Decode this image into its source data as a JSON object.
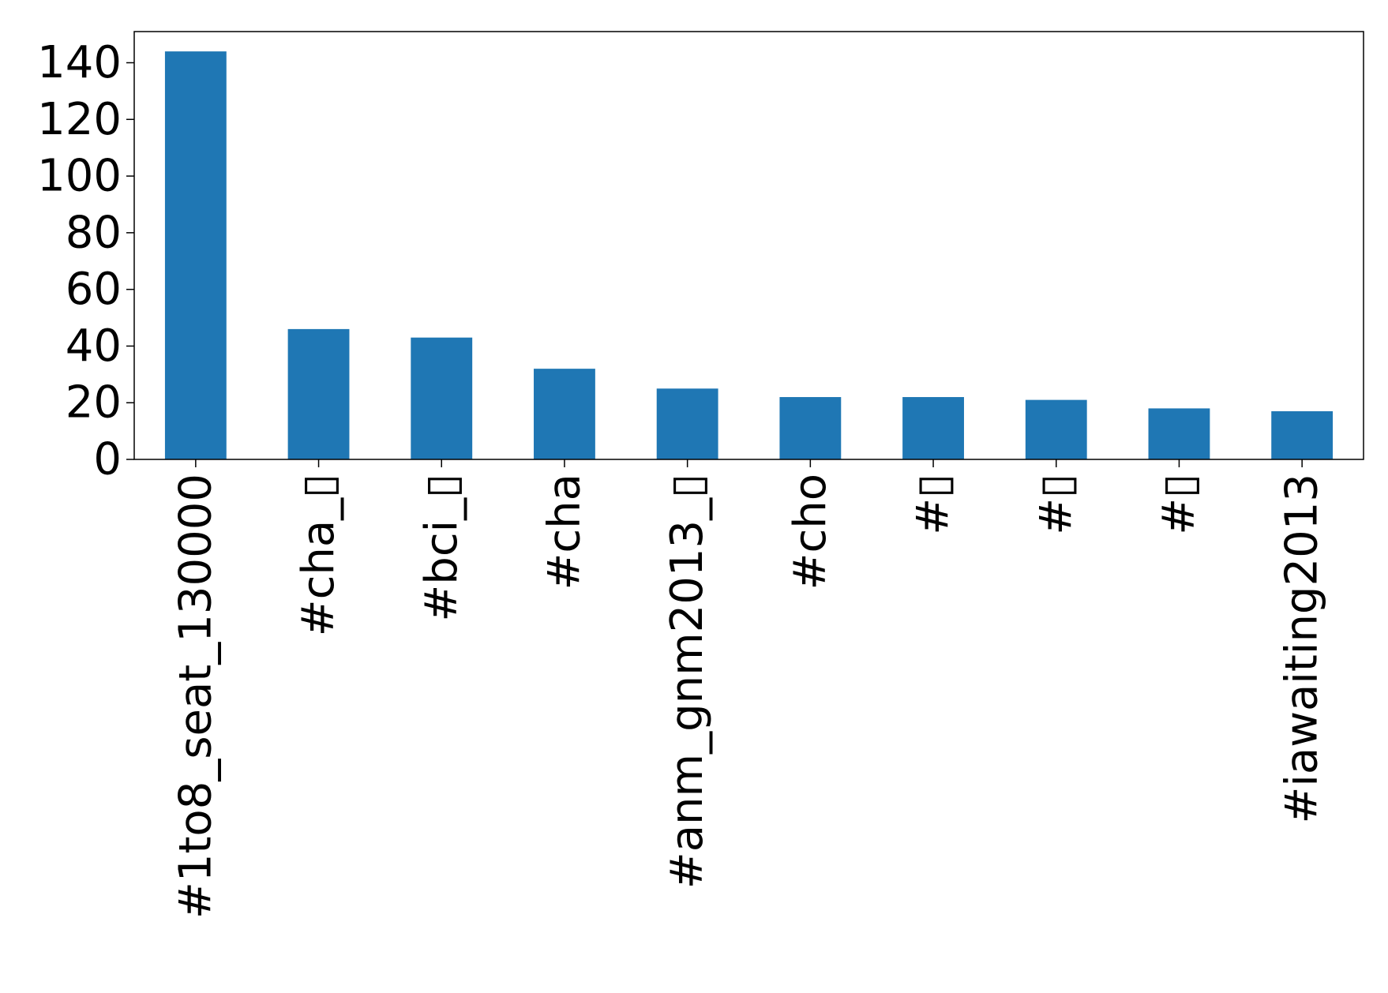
{
  "chart_data": {
    "type": "bar",
    "categories": [
      "#1to8_seat_130000",
      "#cha_▯",
      "#bci_▯",
      "#cha",
      "#anm_gnm2013_▯",
      "#cho",
      "#▯",
      "#▯",
      "#▯",
      "#iawaiting2013"
    ],
    "values": [
      144,
      46,
      43,
      32,
      25,
      22,
      22,
      21,
      18,
      17
    ],
    "yticks": [
      "0",
      "20",
      "40",
      "60",
      "80",
      "100",
      "120",
      "140"
    ],
    "ylim": [
      0,
      151
    ],
    "grid": false,
    "legend": "none",
    "bar_color": "#1f77b4",
    "axis_color": "#000000"
  }
}
